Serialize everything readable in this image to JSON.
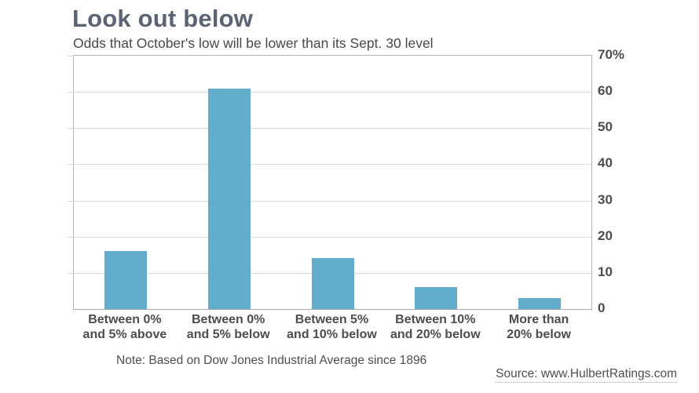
{
  "header": {
    "title": "Look out below",
    "subtitle": "Odds that October's low will be lower than its Sept. 30 level"
  },
  "footer": {
    "note": "Note: Based on Dow Jones Industrial Average since 1896",
    "source": "Source: www.HulbertRatings.com"
  },
  "chart_data": {
    "type": "bar",
    "title": "Look out below",
    "subtitle": "Odds that October's low will be lower than its Sept. 30 level",
    "categories": [
      [
        "Between 0%",
        "and 5% above"
      ],
      [
        "Between 0%",
        "and 5% below"
      ],
      [
        "Between 5%",
        "and 10% below"
      ],
      [
        "Between 10%",
        "and 20% below"
      ],
      [
        "More than",
        "20% below"
      ]
    ],
    "values": [
      16,
      61,
      14,
      6,
      3
    ],
    "xlabel": "",
    "ylabel": "",
    "ylim": [
      0,
      70
    ],
    "yticks": [
      0,
      10,
      20,
      30,
      40,
      50,
      60,
      70
    ],
    "ytick_labels": [
      "0",
      "10",
      "20",
      "30",
      "40",
      "50",
      "60",
      "70%"
    ],
    "ytick_side": "right",
    "grid": true,
    "legend": false,
    "note": "Note: Based on Dow Jones Industrial Average since 1896",
    "source": "Source: www.HulbertRatings.com",
    "colors": {
      "bar": "#62adcb",
      "title": "#5a6472",
      "subtitle": "#484848",
      "axis_labels": "#4d4d4d",
      "gridline": "#dadada",
      "plot_border": "#b5b5b5",
      "background": "#ffffff"
    }
  }
}
